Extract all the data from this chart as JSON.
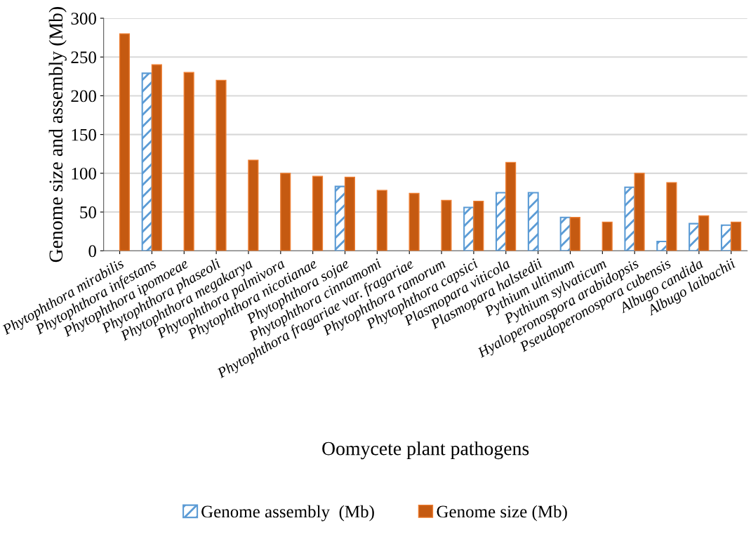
{
  "chart_data": {
    "type": "bar",
    "xlabel": "Oomycete plant pathogens",
    "ylabel": "Genome size and assembly (Mb)",
    "categories": [
      "Phytophthora mirabilis",
      "Phytophthora infestans",
      "Phytophthora ipomoeae",
      "Phytophthora phaseoli",
      "Phytophthora megakarya",
      "Phytophthora palmivora",
      "Phytophthora nicotianae",
      "Phytophthora sojae",
      "Phytophthora cinnamomi",
      "Phytophthora fragariae var. fragariae",
      "Phytophthora ramorum",
      "Phytophthora capsici",
      "Plasmopara viticola",
      "Plasmopara halstedii",
      "Pythium ultimum",
      "Pythium sylvaticum",
      "Hyaloperonospora arabidopsis",
      "Pseudoperonospora cubensis",
      "Albugo candida",
      "Albugo laibachii"
    ],
    "series": [
      {
        "name": "Genome assembly  (Mb)",
        "color": "#5b9bd5",
        "values": [
          null,
          229,
          null,
          null,
          null,
          null,
          null,
          83,
          null,
          null,
          null,
          56,
          75,
          75,
          43,
          null,
          82,
          12,
          35,
          33
        ]
      },
      {
        "name": "Genome size (Mb)",
        "color": "#c55a11",
        "values": [
          280,
          240,
          230,
          220,
          117,
          100,
          96,
          95,
          78,
          74,
          65,
          64,
          114,
          null,
          43,
          37,
          100,
          88,
          45,
          37
        ]
      }
    ],
    "ylim": [
      0,
      300
    ],
    "yticks": [
      0,
      50,
      100,
      150,
      200,
      250,
      300
    ],
    "grid": "y",
    "legend": "bottom"
  }
}
